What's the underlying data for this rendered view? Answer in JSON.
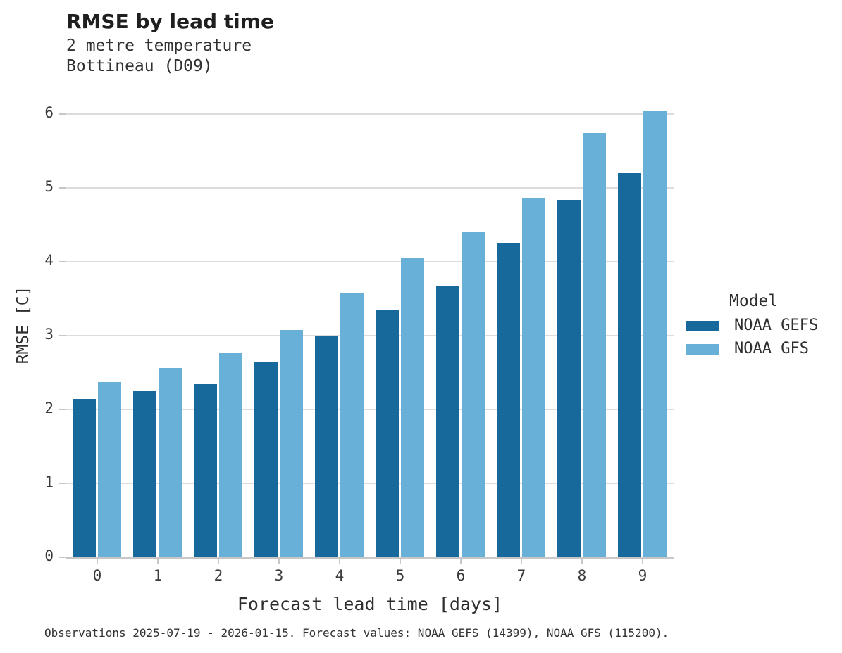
{
  "header": {
    "title": "RMSE by lead time",
    "subtitle1": "2 metre temperature",
    "subtitle2": "Bottineau (D09)"
  },
  "chart_data": {
    "type": "bar",
    "title": "RMSE by lead time",
    "subtitle": [
      "2 metre temperature",
      "Bottineau (D09)"
    ],
    "categories": [
      "0",
      "1",
      "2",
      "3",
      "4",
      "5",
      "6",
      "7",
      "8",
      "9"
    ],
    "series": [
      {
        "name": "NOAA GEFS",
        "color": "#17699c",
        "values": [
          2.14,
          2.25,
          2.34,
          2.64,
          3.0,
          3.35,
          3.68,
          4.25,
          4.84,
          5.2
        ]
      },
      {
        "name": "NOAA GFS",
        "color": "#69b0d9",
        "values": [
          2.37,
          2.56,
          2.77,
          3.08,
          3.58,
          4.06,
          4.41,
          4.87,
          5.74,
          6.04
        ]
      }
    ],
    "xlabel": "Forecast lead time [days]",
    "ylabel": "RMSE [C]",
    "ylim": [
      0,
      6.21
    ],
    "yticks": [
      "0",
      "1",
      "2",
      "3",
      "4",
      "5",
      "6"
    ],
    "grid": "horizontal",
    "legend_position": "right"
  },
  "legend": {
    "title": "Model",
    "items": [
      {
        "label": "NOAA GEFS",
        "color": "#17699c"
      },
      {
        "label": "NOAA GFS",
        "color": "#69b0d9"
      }
    ]
  },
  "caption": "Observations 2025-07-19 - 2026-01-15. Forecast values: NOAA GEFS (14399), NOAA GFS (115200).",
  "colors": {
    "series_dark": "#17699c",
    "series_light": "#69b0d9",
    "gridline": "#dcdcdc",
    "spine": "#c7c7c7"
  }
}
